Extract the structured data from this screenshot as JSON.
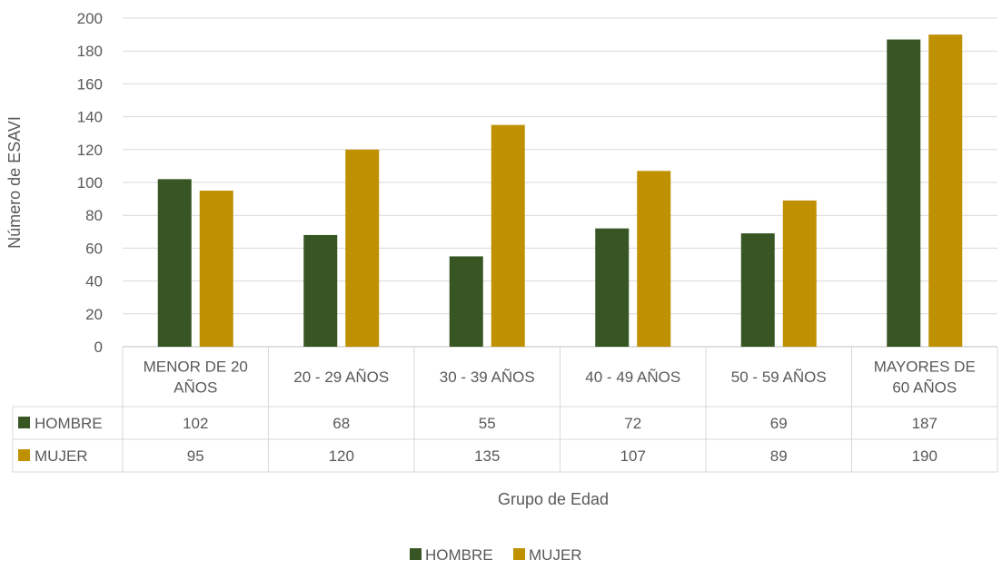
{
  "chart_data": {
    "type": "bar",
    "categories": [
      [
        "MENOR DE 20",
        "AÑOS"
      ],
      [
        "20 - 29 AÑOS"
      ],
      [
        "30 - 39 AÑOS"
      ],
      [
        "40 - 49 AÑOS"
      ],
      [
        "50 - 59 AÑOS"
      ],
      [
        "MAYORES DE",
        "60 AÑOS"
      ]
    ],
    "series": [
      {
        "name": "HOMBRE",
        "color": "#375623",
        "values": [
          102,
          68,
          55,
          72,
          69,
          187
        ]
      },
      {
        "name": "MUJER",
        "color": "#BF9000",
        "values": [
          95,
          120,
          135,
          107,
          89,
          190
        ]
      }
    ],
    "xlabel": "Grupo de Edad",
    "ylabel": "Número de ESAVI",
    "ylim": [
      0,
      200
    ],
    "yticks": [
      0,
      20,
      40,
      60,
      80,
      100,
      120,
      140,
      160,
      180,
      200
    ],
    "grid": true,
    "data_table": true,
    "legend_position": "bottom"
  }
}
